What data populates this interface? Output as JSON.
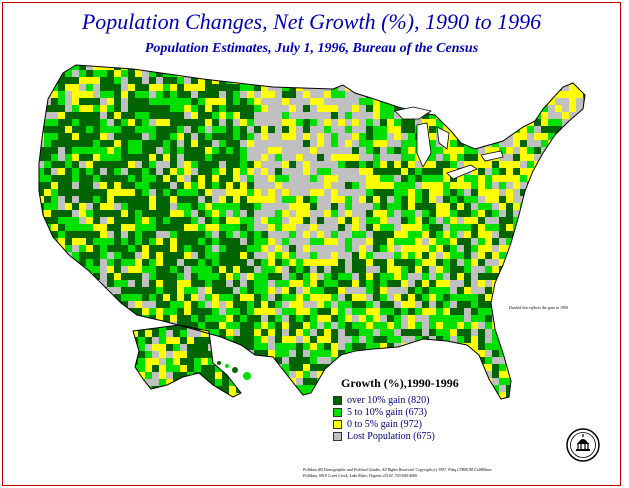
{
  "title": "Population Changes, Net Growth (%), 1990 to 1996",
  "subtitle": "Population Estimates, July 1, 1996, Bureau of the Census",
  "legend": {
    "title": "Growth (%),1990-1996",
    "items": [
      {
        "label": "over 10% gain (820)",
        "color": "#006400"
      },
      {
        "label": "5 to 10% gain (673)",
        "color": "#00e000"
      },
      {
        "label": "0 to 5% gain (972)",
        "color": "#ffff00"
      },
      {
        "label": "Lost Population (675)",
        "color": "#c0c0c0"
      }
    ]
  },
  "side_note": "Dashed line reflects the gain in 1990",
  "footer": {
    "line1": "Polldata (R) Demographic and Political Guides. All Rights Reserved. Copyright (c) 1997, Pdsq CTB9C98 Ca98Sbwn",
    "line2": "Polldata, 9918 Court Creek, Lake Rider, Virginia 22192, 703-690-4066"
  },
  "colors": {
    "border": "#c00000",
    "title": "#0000b8",
    "outline": "#000000",
    "water": "#ffffff"
  },
  "icons": {
    "seal": "capitol-seal-icon"
  }
}
